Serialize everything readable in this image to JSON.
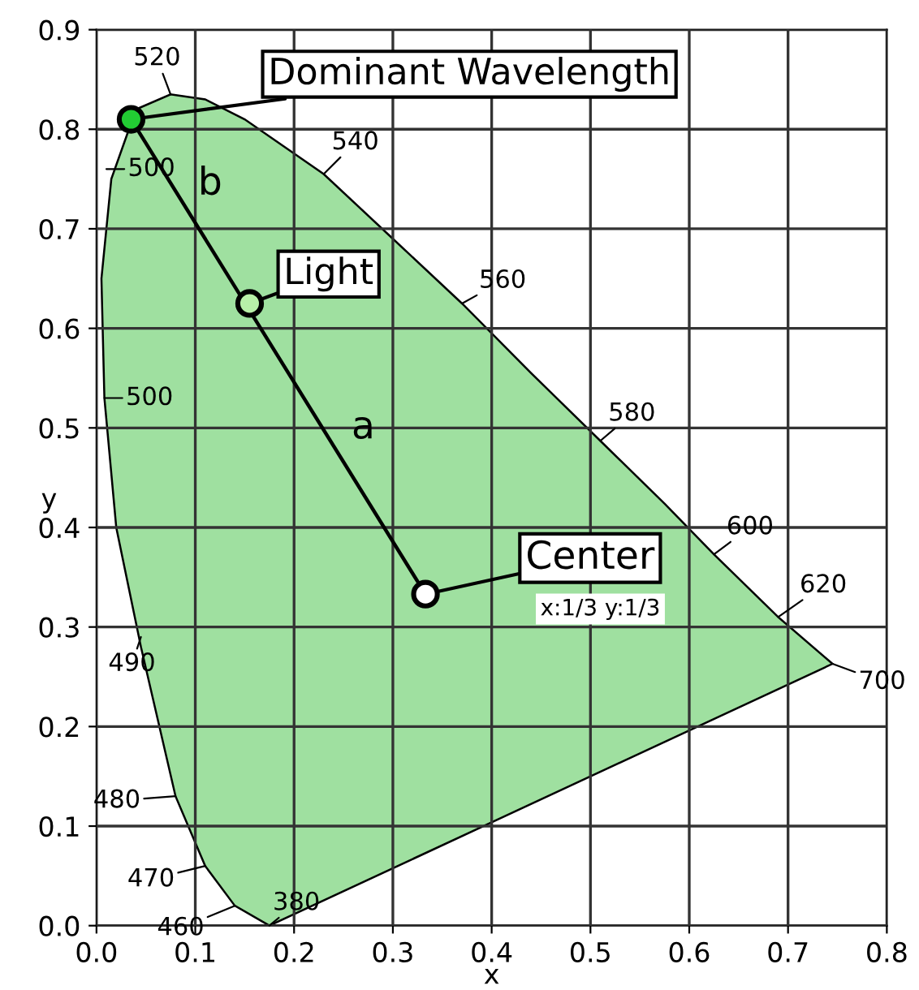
{
  "chart_data": {
    "type": "line",
    "xlabel": "x",
    "ylabel": "y",
    "xlim": [
      0,
      0.8
    ],
    "ylim": [
      0,
      0.9
    ],
    "xticks": [
      {
        "value": 0,
        "label": "0.0"
      },
      0.1,
      0.2,
      0.3,
      0.4,
      0.5,
      0.6,
      0.7,
      0.8
    ],
    "yticks": [
      {
        "value": 0,
        "label": "0.0"
      },
      0.1,
      0.2,
      0.3,
      0.4,
      0.5,
      0.6,
      0.7,
      0.8,
      0.9
    ],
    "grid": true,
    "series": [
      {
        "type": "area",
        "color": "#9fe0a0",
        "x": [
          0.175,
          0.14,
          0.11,
          0.08,
          0.045,
          0.02,
          0.008,
          0.005,
          0.015,
          0.04,
          0.075,
          0.11,
          0.15,
          0.23,
          0.3,
          0.37,
          0.44,
          0.51,
          0.575,
          0.625,
          0.69,
          0.745,
          0.175
        ],
        "values": [
          0.0,
          0.02,
          0.06,
          0.13,
          0.28,
          0.4,
          0.53,
          0.65,
          0.75,
          0.82,
          0.835,
          0.83,
          0.81,
          0.755,
          0.69,
          0.625,
          0.555,
          0.487,
          0.424,
          0.373,
          0.31,
          0.263,
          0.0
        ]
      },
      {
        "color": "#000000",
        "x": [
          0.333,
          0.035
        ],
        "values": [
          0.333,
          0.81
        ]
      },
      {
        "type": "scatter",
        "colors": [
          "#22cc33",
          "#b8f0a8",
          "#ffffff"
        ],
        "x": [
          0.035,
          0.155,
          0.333
        ],
        "values": [
          0.81,
          0.625,
          0.333
        ]
      }
    ],
    "annotations": [
      {
        "text": "520",
        "x": 0.075,
        "y": 0.835
      },
      {
        "text": "540",
        "x": 0.23,
        "y": 0.755
      },
      {
        "text": "560",
        "x": 0.37,
        "y": 0.625
      },
      {
        "text": "580",
        "x": 0.51,
        "y": 0.487
      },
      {
        "text": "600",
        "x": 0.625,
        "y": 0.373
      },
      {
        "text": "620",
        "x": 0.69,
        "y": 0.31
      },
      {
        "text": "700",
        "x": 0.745,
        "y": 0.263
      },
      {
        "text": "500",
        "x": 0.01,
        "y": 0.76
      },
      {
        "text": "500",
        "x": 0.008,
        "y": 0.53
      },
      {
        "text": "490",
        "x": 0.045,
        "y": 0.29
      },
      {
        "text": "480",
        "x": 0.08,
        "y": 0.13
      },
      {
        "text": "470",
        "x": 0.11,
        "y": 0.06
      },
      {
        "text": "460",
        "x": 0.14,
        "y": 0.02
      },
      {
        "text": "380",
        "x": 0.175,
        "y": 0.0
      },
      {
        "text": "Dominant Wavelength",
        "x": 0.035,
        "y": 0.81
      },
      {
        "text": "Light",
        "x": 0.155,
        "y": 0.625
      },
      {
        "text": "Center",
        "x": 0.333,
        "y": 0.333
      },
      "x:1/3 y:1/3",
      "b",
      "a"
    ]
  }
}
